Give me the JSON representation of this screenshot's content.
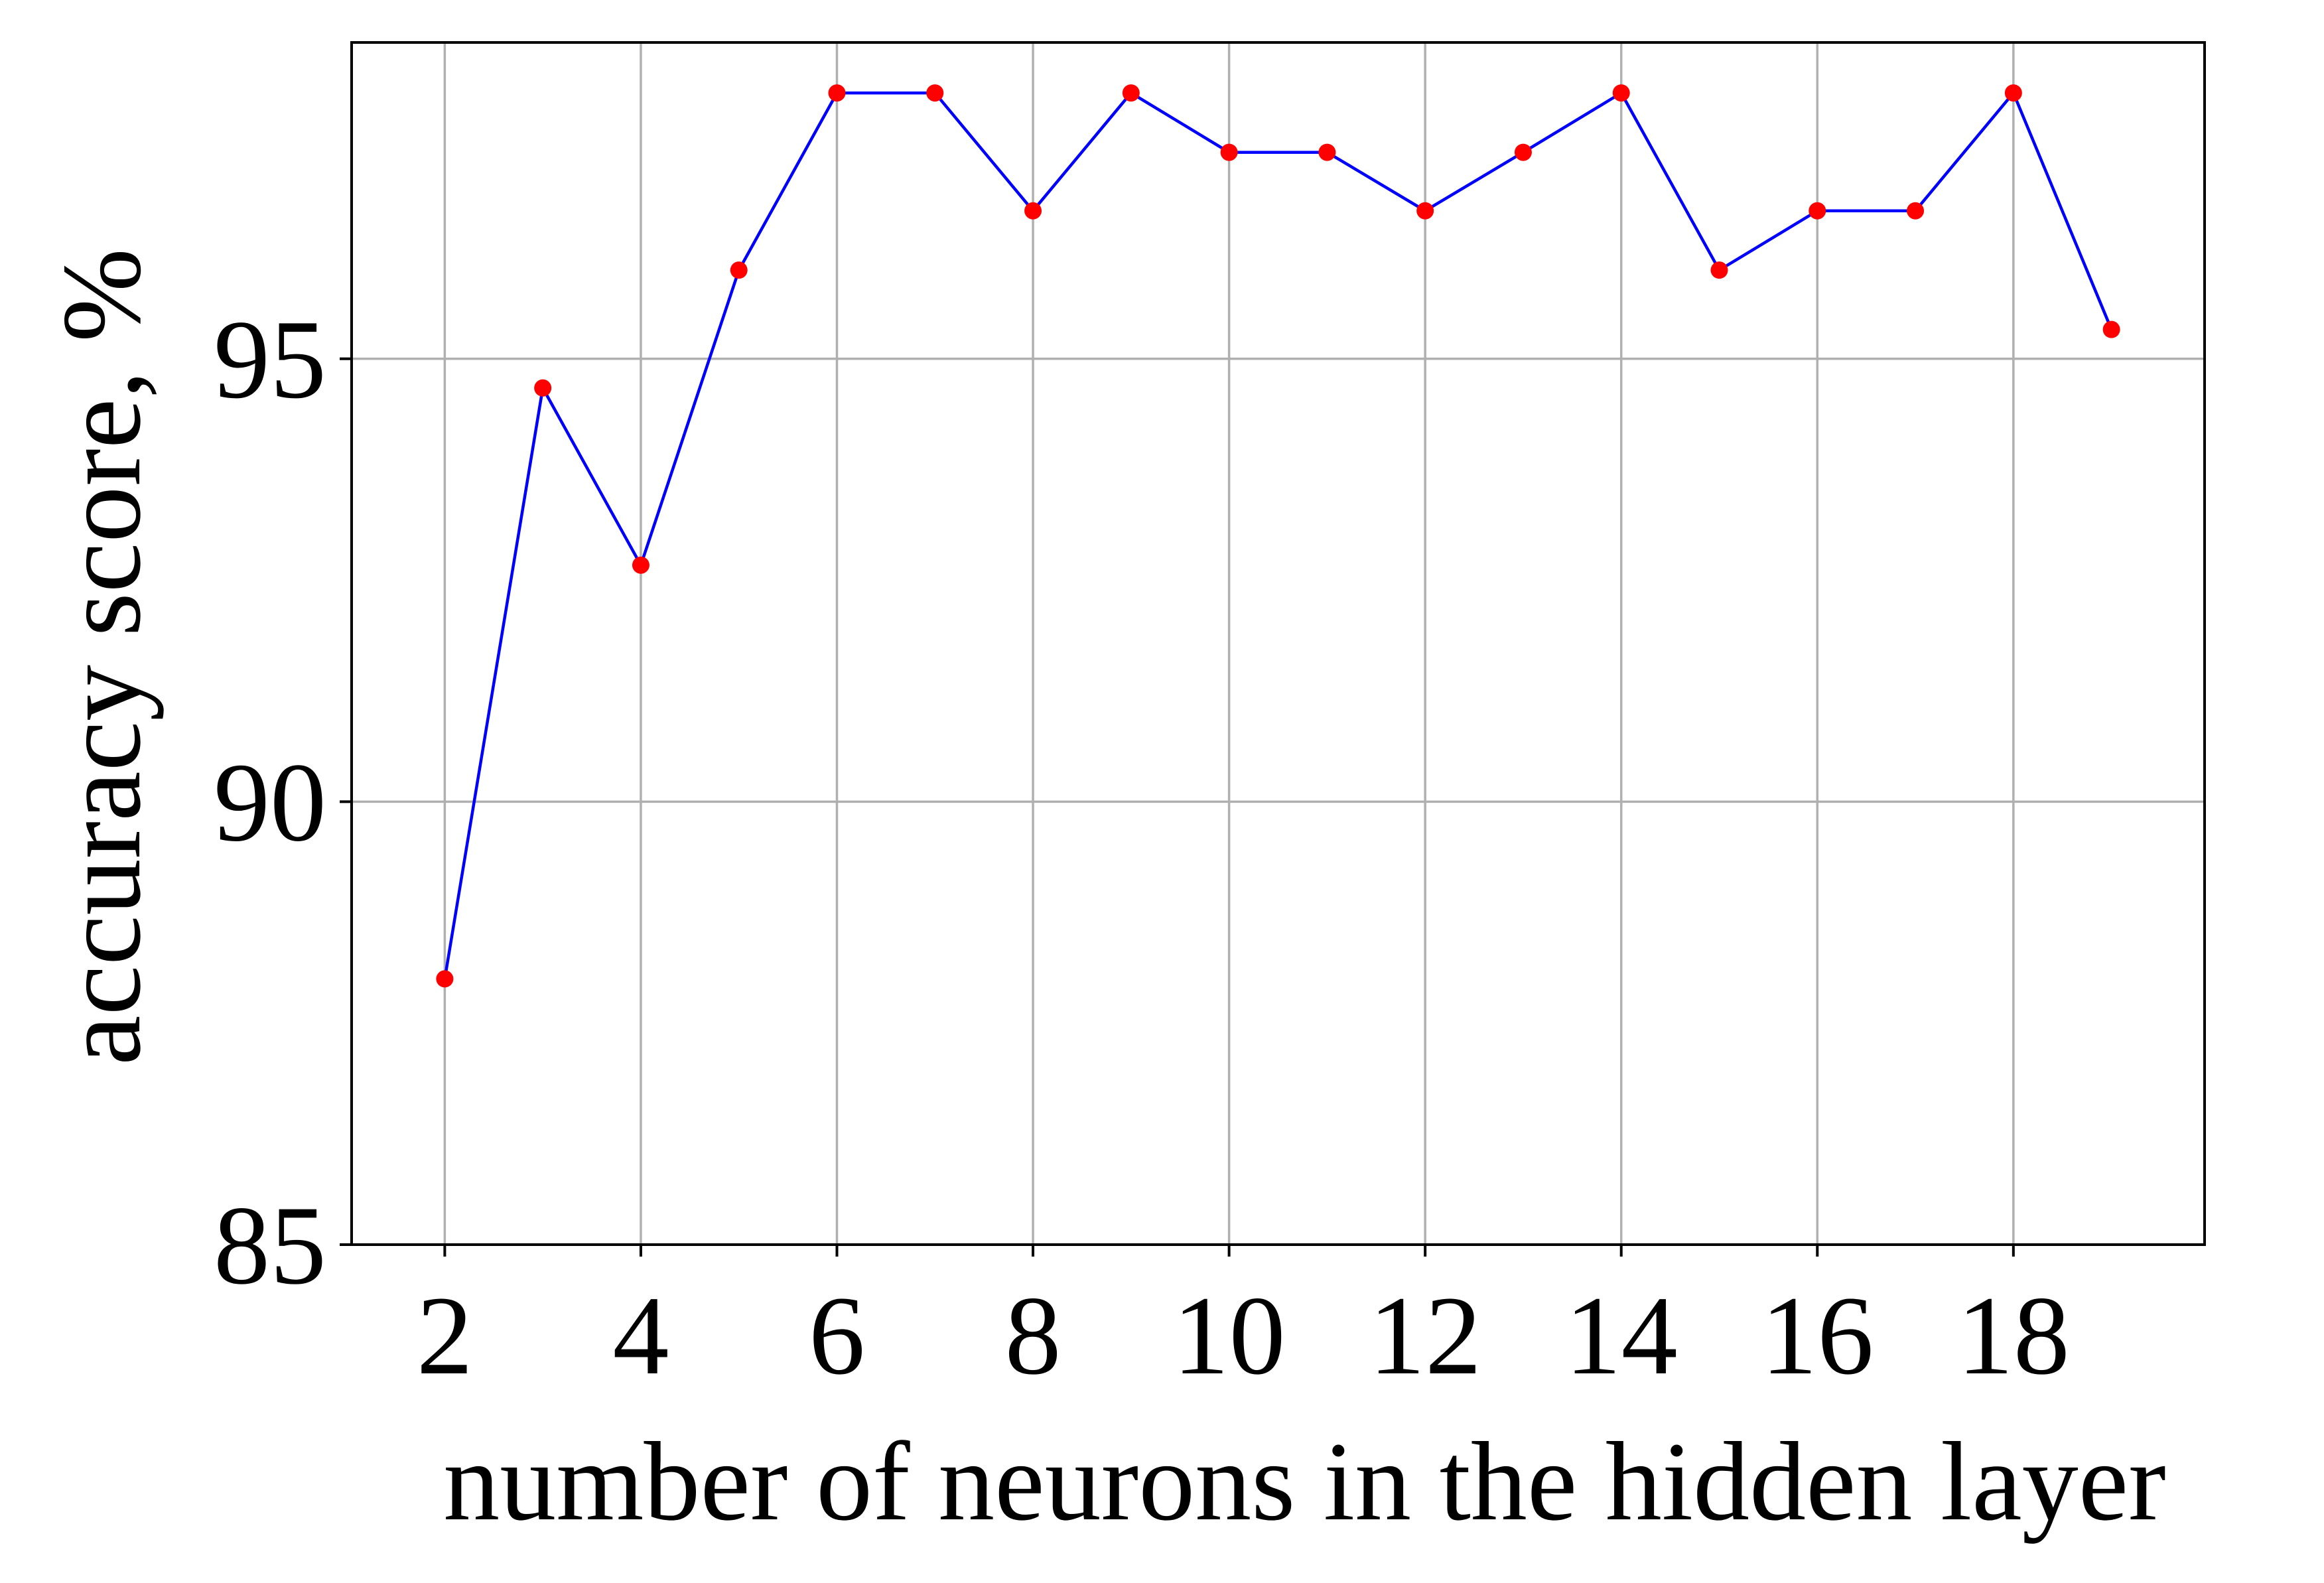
{
  "chart_data": {
    "type": "line",
    "title": "",
    "xlabel": "number of neurons in the hidden layer",
    "ylabel": "accuracy score, %",
    "x": [
      2,
      3,
      4,
      5,
      6,
      7,
      8,
      9,
      10,
      11,
      12,
      13,
      14,
      15,
      16,
      17,
      18,
      19
    ],
    "series": [
      {
        "values": [
          88.0,
          94.67,
          92.67,
          96.0,
          98.0,
          98.0,
          96.67,
          98.0,
          97.33,
          97.33,
          96.67,
          97.33,
          98.0,
          96.0,
          96.67,
          96.67,
          98.0,
          95.33
        ],
        "line_color": "#0000ff",
        "marker_color": "#ff0000"
      }
    ],
    "xlim": [
      1.05,
      19.95
    ],
    "ylim": [
      85,
      98.57
    ],
    "xticks": [
      2,
      4,
      6,
      8,
      10,
      12,
      14,
      16,
      18
    ],
    "yticks": [
      85,
      90,
      95
    ],
    "grid": true
  }
}
